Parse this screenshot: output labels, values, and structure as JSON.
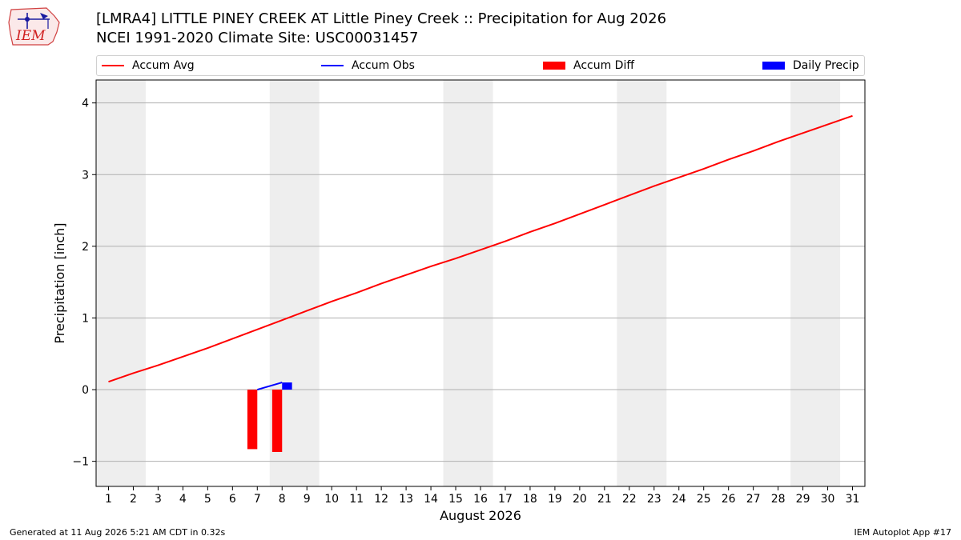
{
  "header": {
    "logo_text": "IEM",
    "title_line1": "[LMRA4] LITTLE PINEY CREEK  AT Little Piney Creek :: Precipitation for Aug 2026",
    "title_line2": "NCEI 1991-2020 Climate Site: USC00031457"
  },
  "footer": {
    "generated": "Generated at 11 Aug 2026 5:21 AM CDT in 0.32s",
    "app": "IEM Autoplot App #17"
  },
  "chart_data": {
    "type": "line",
    "xlabel": "August 2026",
    "ylabel": "Precipitation [inch]",
    "xlim": [
      0.5,
      31.5
    ],
    "ylim": [
      -1.35,
      4.32
    ],
    "x_ticks": [
      1,
      2,
      3,
      4,
      5,
      6,
      7,
      8,
      9,
      10,
      11,
      12,
      13,
      14,
      15,
      16,
      17,
      18,
      19,
      20,
      21,
      22,
      23,
      24,
      25,
      26,
      27,
      28,
      29,
      30,
      31
    ],
    "y_ticks": [
      -1,
      0,
      1,
      2,
      3,
      4
    ],
    "y_tick_labels": [
      "−1",
      "0",
      "1",
      "2",
      "3",
      "4"
    ],
    "grid": "horizontal",
    "legend_position": "top",
    "weekend_shading": [
      [
        0.5,
        2.5
      ],
      [
        7.5,
        9.5
      ],
      [
        14.5,
        16.5
      ],
      [
        21.5,
        23.5
      ],
      [
        28.5,
        30.5
      ]
    ],
    "colors": {
      "accum_avg": "#ff0000",
      "accum_obs": "#0000ff",
      "accum_diff": "#ff0000",
      "daily_precip": "#0000ff",
      "shade": "#eeeeee",
      "grid": "#b0b0b0"
    },
    "series": [
      {
        "name": "Accum Avg",
        "kind": "line",
        "x": [
          1,
          2,
          3,
          4,
          5,
          6,
          7,
          8,
          9,
          10,
          11,
          12,
          13,
          14,
          15,
          16,
          17,
          18,
          19,
          20,
          21,
          22,
          23,
          24,
          25,
          26,
          27,
          28,
          29,
          30,
          31
        ],
        "values": [
          0.11,
          0.23,
          0.34,
          0.46,
          0.58,
          0.71,
          0.84,
          0.97,
          1.1,
          1.23,
          1.35,
          1.48,
          1.6,
          1.72,
          1.83,
          1.95,
          2.07,
          2.2,
          2.32,
          2.45,
          2.58,
          2.71,
          2.84,
          2.96,
          3.08,
          3.21,
          3.33,
          3.46,
          3.58,
          3.7,
          3.82
        ]
      },
      {
        "name": "Accum Obs",
        "kind": "line",
        "x": [
          7,
          8
        ],
        "values": [
          0.0,
          0.1
        ]
      },
      {
        "name": "Accum Diff",
        "kind": "bar",
        "x": [
          7,
          8
        ],
        "values": [
          -0.83,
          -0.87
        ]
      },
      {
        "name": "Daily Precip",
        "kind": "bar",
        "x": [
          8
        ],
        "values": [
          0.1
        ]
      }
    ]
  }
}
